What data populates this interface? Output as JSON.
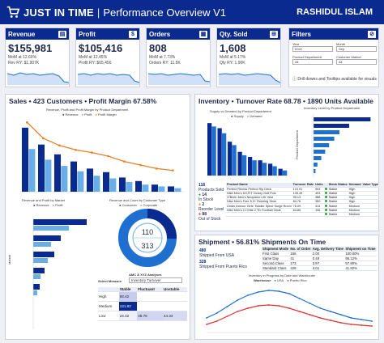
{
  "header": {
    "brand": "JUST IN TIME",
    "separator": "|",
    "title": "Performance Overview V1",
    "author": "RASHIDUL ISLAM"
  },
  "kpis": [
    {
      "label": "Revenue",
      "icon": "revenue-icon",
      "value": "$155,981",
      "sub1": "MoM at 12.60%",
      "sub2": "Rev RY: $1,907K"
    },
    {
      "label": "Profit",
      "icon": "money-bag-icon",
      "value": "$105,416",
      "sub1": "MoM at 12.45%",
      "sub2": "Profit RY: $65,456"
    },
    {
      "label": "Orders",
      "icon": "calendar-icon",
      "value": "808",
      "sub1": "MoM at 7.73%",
      "sub2": "Orders RY: 11.5K"
    },
    {
      "label": "Qty. Sold",
      "icon": "cart-icon",
      "value": "1,608",
      "sub1": "MoM at 5.17%",
      "sub2": "Qty RY: 1.90K"
    }
  ],
  "filters": {
    "title": "Filters",
    "year_label": "Year",
    "year_value": "2022",
    "month_label": "Month",
    "month_value": "Sep",
    "dept_label": "Product Department",
    "dept_value": "All",
    "market_label": "Customer Market",
    "market_value": "All",
    "note": "Drill downs and Tooltips available for visuals"
  },
  "sales": {
    "title": "Sales • 423 Customers • Profit Margin 67.58%",
    "chart1_title": "Revenue, Profit and Profit Margin by Product Department",
    "legend": [
      "Revenue",
      "Profit",
      "Profit Margin"
    ],
    "chart2_title": "Revenue and Profit by Market",
    "chart2_legend": [
      "Revenue",
      "Profit"
    ],
    "chart2_axis": "Market",
    "chart3_title": "Revenue and Count by Customer Type",
    "chart3_legend": [
      "Consumer",
      "Corporate"
    ],
    "donut_inner": "110",
    "donut_outer": "313",
    "matrix_title": "AMC & XYZ Analyses",
    "matrix_measure_label": "Select Measure",
    "matrix_measure_value": "Inventory Turnover",
    "matrix_cols": [
      "",
      "Stable",
      "Fluctuant",
      "Unstable"
    ],
    "matrix_rows": [
      {
        "label": "High",
        "stable": "68.42",
        "fluct": "",
        "unst": ""
      },
      {
        "label": "Medium",
        "stable": "131.82",
        "fluct": "",
        "unst": ""
      },
      {
        "label": "Low",
        "stable": "24.42",
        "fluct": "48.76",
        "unst": "44.34"
      }
    ]
  },
  "inventory": {
    "title": "Inventory • Turnover Rate 68.78 • 1890 Units Available",
    "chart1_title": "Supply vs Demand by Product Department",
    "chart1_legend": [
      "Supply",
      "Demand"
    ],
    "chart2_title": "Inventory Level by Product Department",
    "chart2_axis": "Product Department",
    "stats": [
      {
        "value": "118",
        "label": "Products Sold"
      },
      {
        "value": "14",
        "label": "In Stock"
      },
      {
        "value": "2",
        "label": "Reorder Level"
      },
      {
        "value": "88",
        "label": "Out of Stock"
      }
    ],
    "table_headers": [
      "Product Name",
      "Turnover Rate",
      "Units",
      "",
      "Stock Status",
      "Demand",
      "Value Type"
    ],
    "table_rows": [
      [
        "Perfect Fitness Perfect Rip Deck",
        "124.91",
        "594",
        "Stable",
        "High"
      ],
      [
        "Nike Men's Dri-FIT Victory Golf Polo",
        "105.49",
        "493",
        "Stable",
        "High"
      ],
      [
        "O'Brien Men's Neoprene Life Vest",
        "95.13",
        "388",
        "Stable",
        "High"
      ],
      [
        "Nike Men's Free 5.0+ Running Shoe",
        "84.76",
        "350",
        "Stable",
        "High"
      ],
      [
        "Under Armour Girls' Toddler Spine Surge Runni",
        "78.09",
        "314",
        "Stable",
        "Medium"
      ],
      [
        "Nike Men's CJ Elite 2 TD Football Cleat",
        "63.85",
        "196",
        "Stable",
        "Medium"
      ],
      [
        "",
        "",
        "",
        "Stable",
        "Medium"
      ]
    ]
  },
  "shipment": {
    "title": "Shipment • 56.81% Shipments On Time",
    "stats": [
      {
        "value": "480",
        "label": "Shipped From USA"
      },
      {
        "value": "328",
        "label": "Shipped From Puerto Rico"
      }
    ],
    "table_headers": [
      "Shipment Mode",
      "No. of Order",
      "Avg. Delivery Time",
      "Shipment on Time"
    ],
    "table_rows": [
      [
        "First Class",
        "166",
        "2.00",
        "100.00%"
      ],
      [
        "Same Day",
        "41",
        "0.49",
        "95.12%"
      ],
      [
        "Second Class",
        "173",
        "3.97",
        "57.80%"
      ],
      [
        "Standard Class",
        "428",
        "4.01",
        "41.82%"
      ]
    ],
    "chart_title": "Inventory in Progress by Date and Warehouse",
    "chart_legend_label": "Warehouse",
    "chart_legend": [
      "USA",
      "Puerto Rico"
    ]
  },
  "colors": {
    "navy": "#0b2a8f",
    "blue": "#1f6fd1",
    "light_blue": "#6aaee8",
    "orange": "#f07d22",
    "red": "#e03030"
  },
  "chart_data": [
    {
      "type": "bar",
      "title": "Revenue, Profit and Profit Margin by Product Department",
      "series": [
        {
          "name": "Revenue",
          "values": [
            72,
            53,
            42,
            34,
            26,
            22,
            16,
            12,
            8,
            6
          ]
        },
        {
          "name": "Profit",
          "values": [
            48,
            36,
            29,
            23,
            18,
            15,
            11,
            8,
            6,
            4
          ]
        },
        {
          "name": "Profit Margin",
          "values": [
            78,
            60,
            52,
            47,
            44,
            40,
            34,
            30,
            26,
            24
          ]
        }
      ]
    },
    {
      "type": "bar",
      "title": "Supply vs Demand by Product Department",
      "series": [
        {
          "name": "Supply",
          "values": [
            62,
            56,
            40,
            28,
            22,
            18,
            14,
            8
          ]
        },
        {
          "name": "Demand",
          "values": [
            58,
            50,
            36,
            24,
            18,
            15,
            11,
            6
          ]
        }
      ]
    },
    {
      "type": "bar",
      "title": "Inventory Level by Product Department",
      "values": [
        88,
        55,
        40,
        32,
        24,
        18,
        12,
        6,
        3
      ]
    },
    {
      "type": "line",
      "title": "Inventory in Progress by Date and Warehouse",
      "series": [
        {
          "name": "USA",
          "values": [
            18,
            24,
            32,
            40,
            46,
            50,
            52,
            51,
            48,
            42,
            36,
            30,
            26,
            22,
            18,
            16,
            14
          ]
        },
        {
          "name": "Puerto Rico",
          "values": [
            10,
            14,
            20,
            26,
            30,
            33,
            34,
            33,
            30,
            26,
            22,
            18,
            15,
            12,
            10,
            9,
            8
          ]
        }
      ]
    }
  ]
}
